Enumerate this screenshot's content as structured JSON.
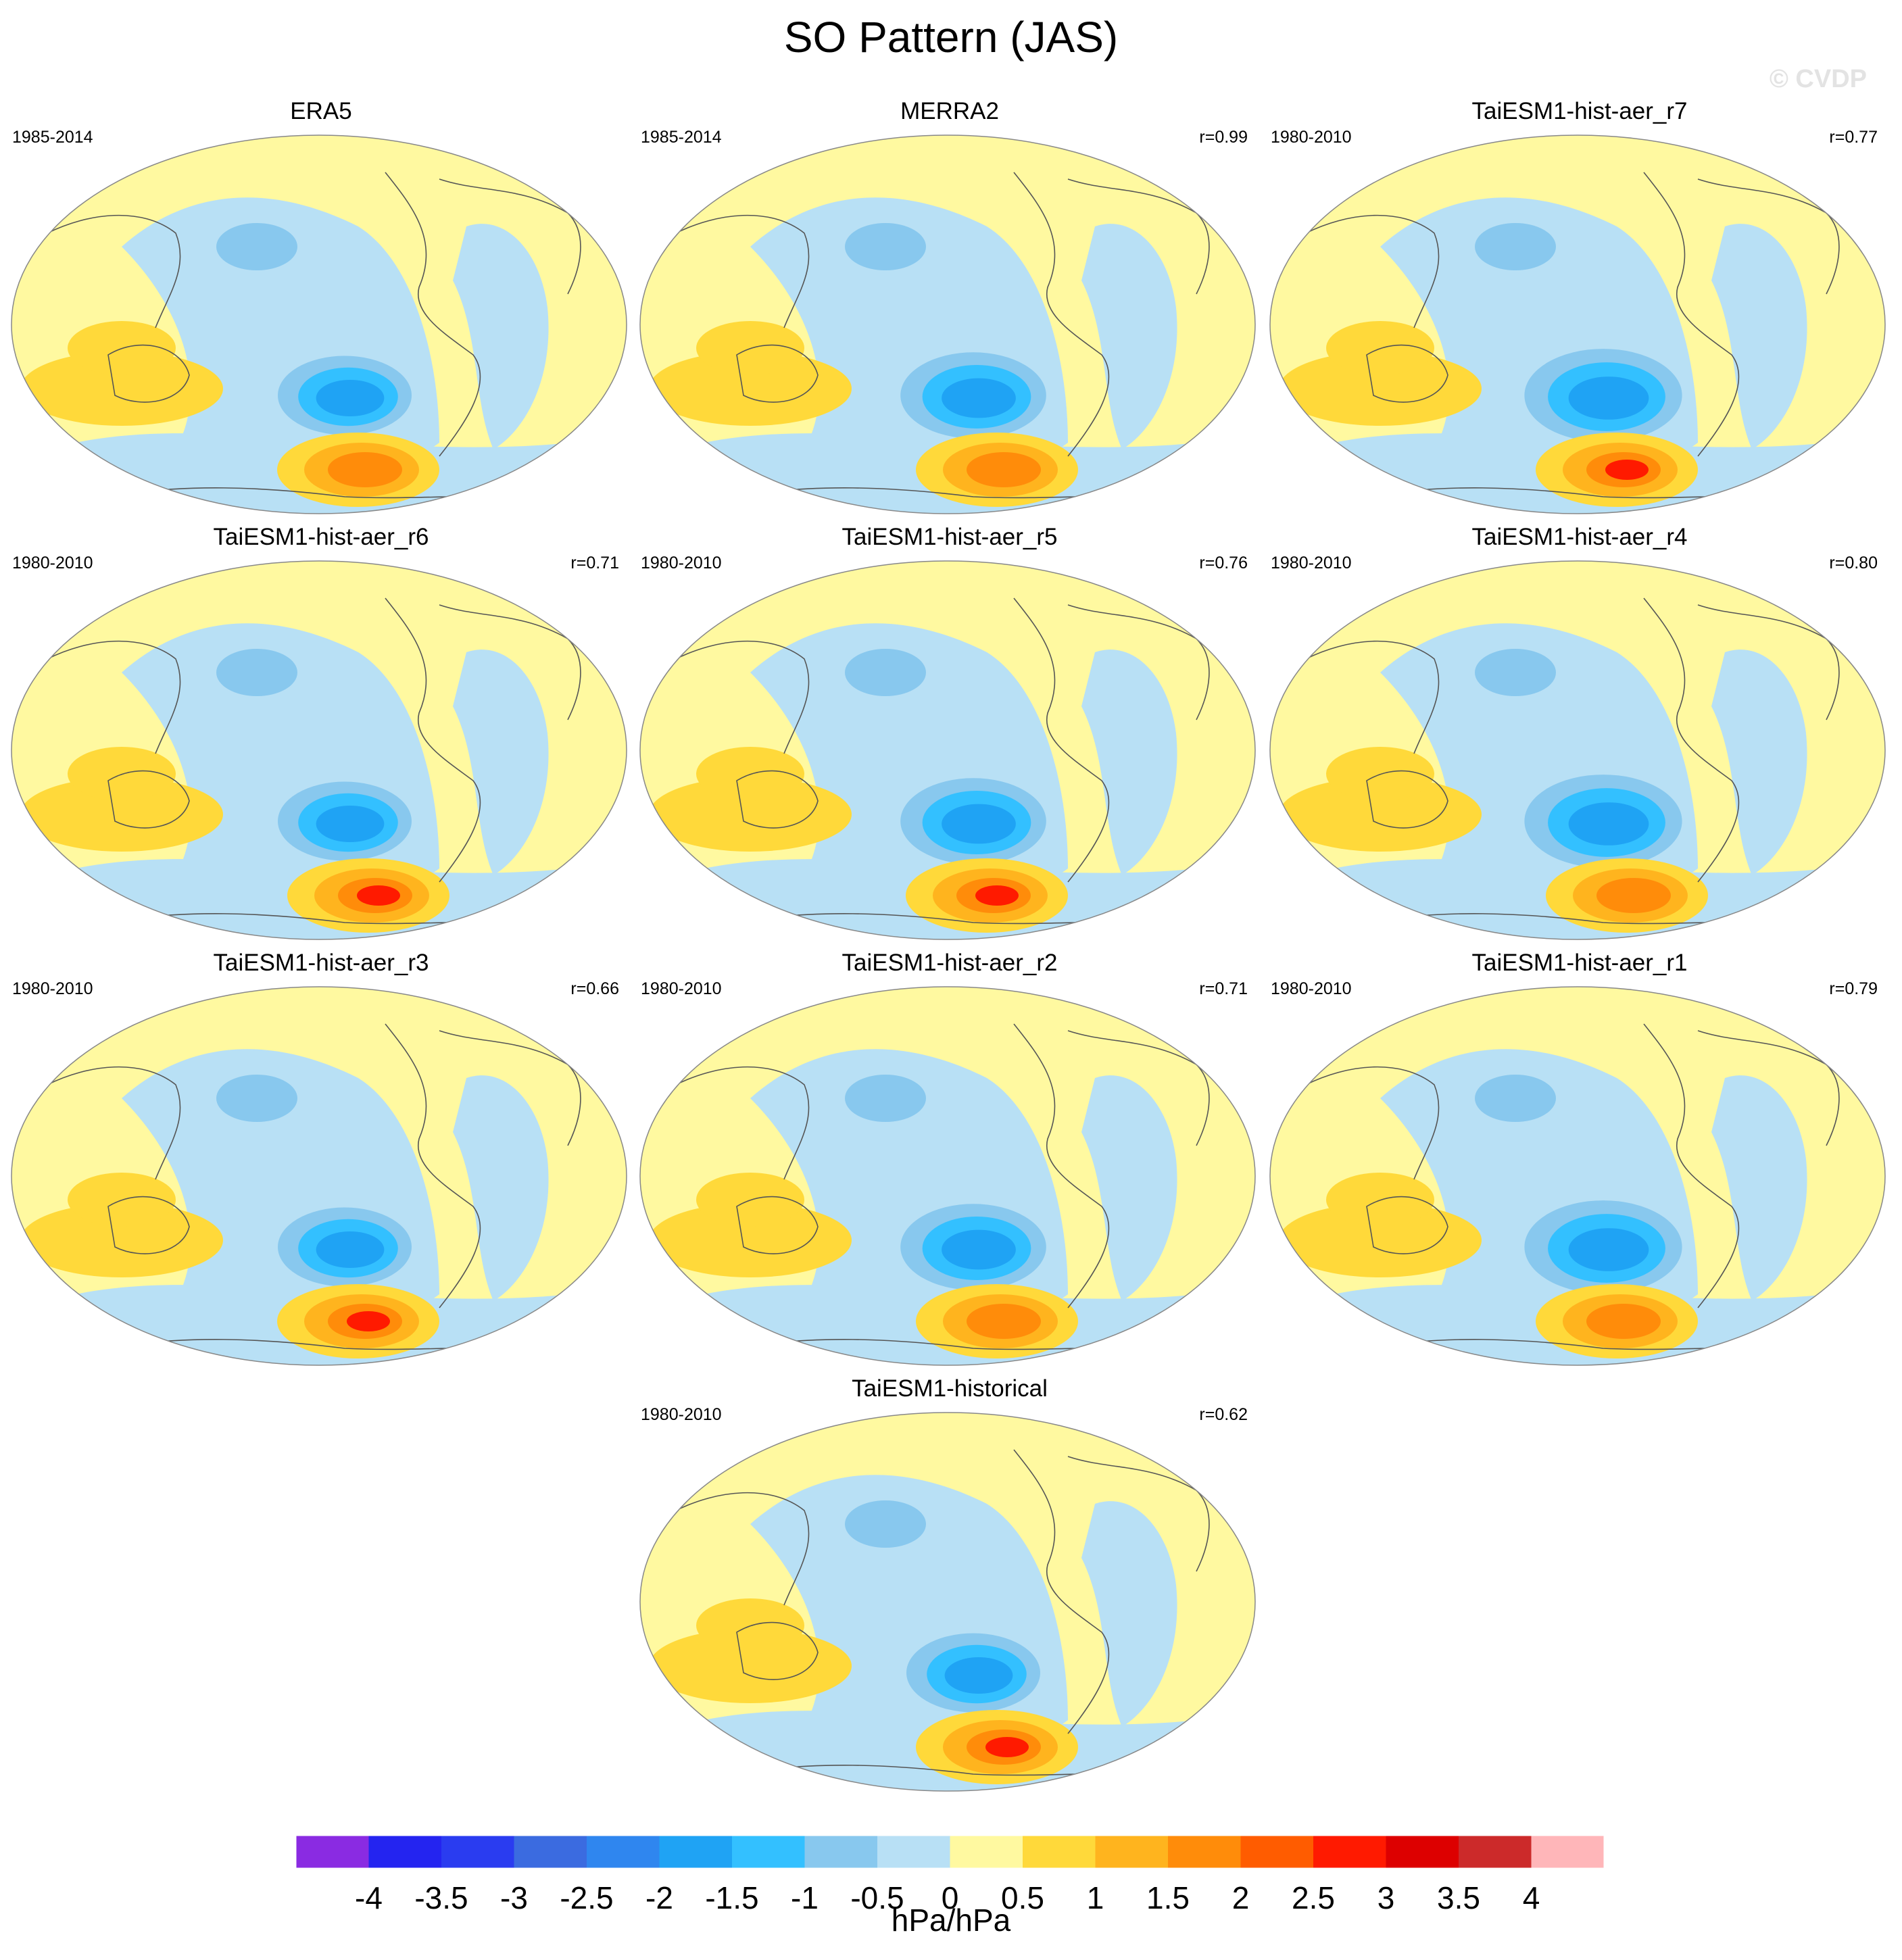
{
  "title": "SO Pattern (JAS)",
  "watermark": "© CVDP",
  "chart_data": {
    "type": "heatmap",
    "title": "SO Pattern (JAS)",
    "projection": "global map (Pacific-centered)",
    "colorbar": {
      "units": "hPa/hPa",
      "tick_labels": [
        "-4",
        "-3.5",
        "-3",
        "-2.5",
        "-2",
        "-1.5",
        "-1",
        "-0.5",
        "0",
        "0.5",
        "1",
        "1.5",
        "2",
        "2.5",
        "3",
        "3.5",
        "4"
      ],
      "colors": [
        "#8a2be2",
        "#2424f0",
        "#2a3cf0",
        "#3b6be0",
        "#2f86ef",
        "#1fa3f4",
        "#33c0ff",
        "#88c8ee",
        "#b8e0f5",
        "#fff9a0",
        "#ffd93a",
        "#ffb41e",
        "#ff8c0a",
        "#ff5c00",
        "#ff1a00",
        "#dd0000",
        "#cc2a2a",
        "#ffb6b9"
      ]
    },
    "panels": [
      {
        "name": "ERA5",
        "years": "1985-2014",
        "r": ""
      },
      {
        "name": "MERRA2",
        "years": "1985-2014",
        "r": "r=0.99"
      },
      {
        "name": "TaiESM1-hist-aer_r7",
        "years": "1980-2010",
        "r": "r=0.77"
      },
      {
        "name": "TaiESM1-hist-aer_r6",
        "years": "1980-2010",
        "r": "r=0.71"
      },
      {
        "name": "TaiESM1-hist-aer_r5",
        "years": "1980-2010",
        "r": "r=0.76"
      },
      {
        "name": "TaiESM1-hist-aer_r4",
        "years": "1980-2010",
        "r": "r=0.80"
      },
      {
        "name": "TaiESM1-hist-aer_r3",
        "years": "1980-2010",
        "r": "r=0.66"
      },
      {
        "name": "TaiESM1-hist-aer_r2",
        "years": "1980-2010",
        "r": "r=0.71"
      },
      {
        "name": "TaiESM1-hist-aer_r1",
        "years": "1980-2010",
        "r": "r=0.79"
      },
      {
        "name": "TaiESM1-historical",
        "years": "1980-2010",
        "r": "r=0.62"
      }
    ]
  }
}
